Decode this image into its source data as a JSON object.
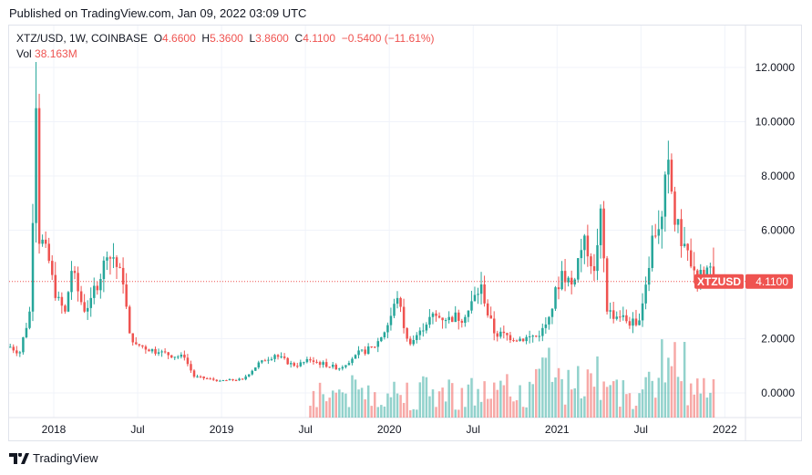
{
  "published": "Published on TradingView.com, Jan 09, 2022 03:09 UTC",
  "legend": {
    "symbol": "XTZ/USD, 1W, COINBASE",
    "o_label": "O",
    "o": "4.6600",
    "h_label": "H",
    "h": "5.3600",
    "l_label": "L",
    "l": "3.8600",
    "c_label": "C",
    "c": "4.1100",
    "change": "−0.5400 (−11.61%)",
    "vol_label": "Vol",
    "vol": "38.163M"
  },
  "price_tag": {
    "symbol": "XTZUSD",
    "value": "4.1100"
  },
  "footer": {
    "brand": "TradingView",
    "icon": "tradingview-logo-icon"
  },
  "colors": {
    "up": "#26a69a",
    "down": "#ef5350",
    "grid": "#f0f3fa"
  },
  "chart_data": {
    "type": "candlestick",
    "interval": "1W",
    "y_ticks": [
      "12.0000",
      "10.0000",
      "8.0000",
      "6.0000",
      "2.0000",
      "0.0000"
    ],
    "y_range": [
      -0.9,
      13.0
    ],
    "x_ticks": [
      {
        "label": "2018",
        "week": 13
      },
      {
        "label": "Jul",
        "week": 39
      },
      {
        "label": "2019",
        "week": 65
      },
      {
        "label": "Jul",
        "week": 91
      },
      {
        "label": "2020",
        "week": 117
      },
      {
        "label": "Jul",
        "week": 143
      },
      {
        "label": "2021",
        "week": 169
      },
      {
        "label": "Jul",
        "week": 195
      },
      {
        "label": "2022",
        "week": 221
      }
    ],
    "close_anchors": [
      [
        0,
        1.7
      ],
      [
        3,
        1.5
      ],
      [
        6,
        3.0
      ],
      [
        8,
        10.5
      ],
      [
        9,
        5.5
      ],
      [
        11,
        5.5
      ],
      [
        14,
        3.5
      ],
      [
        17,
        3.0
      ],
      [
        19,
        4.5
      ],
      [
        23,
        3.0
      ],
      [
        25,
        3.5
      ],
      [
        30,
        5.0
      ],
      [
        32,
        5.0
      ],
      [
        35,
        4.0
      ],
      [
        37,
        2.2
      ],
      [
        39,
        1.8
      ],
      [
        46,
        1.5
      ],
      [
        54,
        1.3
      ],
      [
        57,
        0.6
      ],
      [
        65,
        0.45
      ],
      [
        72,
        0.5
      ],
      [
        78,
        1.2
      ],
      [
        82,
        1.4
      ],
      [
        88,
        1.0
      ],
      [
        93,
        1.2
      ],
      [
        102,
        0.9
      ],
      [
        107,
        1.4
      ],
      [
        113,
        1.7
      ],
      [
        117,
        2.5
      ],
      [
        120,
        3.5
      ],
      [
        123,
        2.0
      ],
      [
        124,
        1.8
      ],
      [
        127,
        2.3
      ],
      [
        130,
        2.8
      ],
      [
        136,
        2.8
      ],
      [
        141,
        2.8
      ],
      [
        146,
        4.0
      ],
      [
        147,
        3.3
      ],
      [
        150,
        2.2
      ],
      [
        158,
        2.0
      ],
      [
        164,
        2.1
      ],
      [
        167,
        2.8
      ],
      [
        171,
        4.5
      ],
      [
        174,
        4.0
      ],
      [
        178,
        5.8
      ],
      [
        181,
        4.5
      ],
      [
        183,
        6.8
      ],
      [
        185,
        3.0
      ],
      [
        189,
        2.8
      ],
      [
        194,
        2.5
      ],
      [
        196,
        3.3
      ],
      [
        199,
        5.8
      ],
      [
        202,
        6.5
      ],
      [
        204,
        8.6
      ],
      [
        206,
        6.2
      ],
      [
        209,
        5.5
      ],
      [
        213,
        4.2
      ],
      [
        217,
        4.66
      ],
      [
        218,
        4.11
      ]
    ],
    "spike_high": {
      "week": 8,
      "value": 12.2
    },
    "volume_start_week": 93,
    "last": {
      "open": 4.66,
      "high": 5.36,
      "low": 3.86,
      "close": 4.11,
      "volume_m": 38.163
    }
  }
}
